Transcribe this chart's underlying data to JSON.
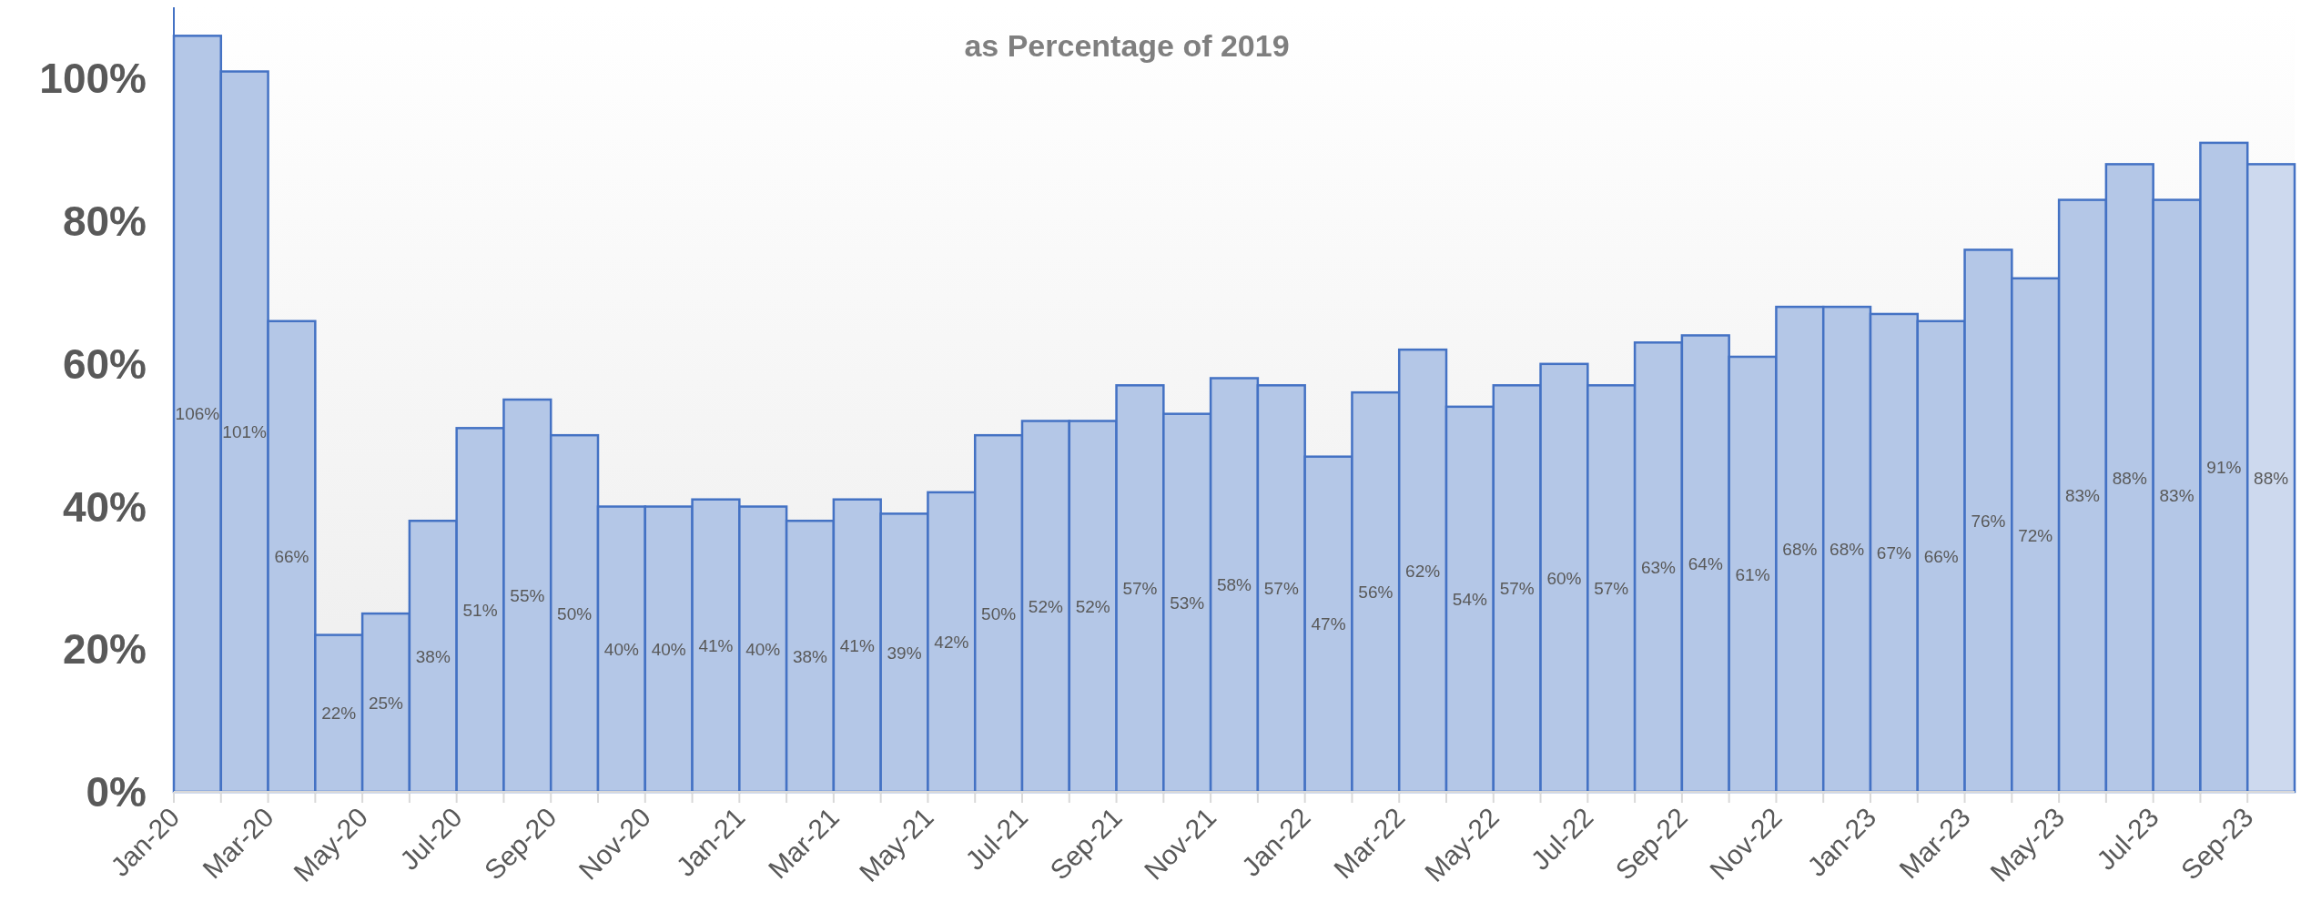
{
  "chart_data": {
    "type": "bar",
    "subtitle": "as Percentage of 2019",
    "categories": [
      "Jan-20",
      null,
      "Mar-20",
      null,
      "May-20",
      null,
      "Jul-20",
      null,
      "Sep-20",
      null,
      "Nov-20",
      null,
      "Jan-21",
      null,
      "Mar-21",
      null,
      "May-21",
      null,
      "Jul-21",
      null,
      "Sep-21",
      null,
      "Nov-21",
      null,
      "Jan-22",
      null,
      "Mar-22",
      null,
      "May-22",
      null,
      "Jul-22",
      null,
      "Sep-22",
      null,
      "Nov-22",
      null,
      "Jan-23",
      null,
      "Mar-23",
      null,
      "May-23",
      null,
      "Jul-23",
      null,
      "Sep-23"
    ],
    "values": [
      106,
      101,
      66,
      22,
      25,
      38,
      51,
      55,
      50,
      40,
      40,
      41,
      40,
      38,
      41,
      39,
      42,
      50,
      52,
      52,
      57,
      53,
      58,
      57,
      47,
      56,
      62,
      54,
      57,
      60,
      57,
      63,
      64,
      61,
      68,
      68,
      67,
      66,
      76,
      72,
      83,
      88,
      83,
      91,
      88
    ],
    "colors": [
      "#b4c7e7",
      "#b4c7e7",
      "#b4c7e7",
      "#b4c7e7",
      "#b4c7e7",
      "#b4c7e7",
      "#b4c7e7",
      "#b4c7e7",
      "#b4c7e7",
      "#b4c7e7",
      "#b4c7e7",
      "#b4c7e7",
      "#b4c7e7",
      "#b4c7e7",
      "#b4c7e7",
      "#b4c7e7",
      "#b4c7e7",
      "#b4c7e7",
      "#b4c7e7",
      "#b4c7e7",
      "#b4c7e7",
      "#b4c7e7",
      "#b4c7e7",
      "#b4c7e7",
      "#b4c7e7",
      "#b4c7e7",
      "#b4c7e7",
      "#b4c7e7",
      "#b4c7e7",
      "#b4c7e7",
      "#b4c7e7",
      "#b4c7e7",
      "#b4c7e7",
      "#b4c7e7",
      "#b4c7e7",
      "#b4c7e7",
      "#b4c7e7",
      "#b4c7e7",
      "#b4c7e7",
      "#b4c7e7",
      "#b4c7e7",
      "#b4c7e7",
      "#b4c7e7",
      "#b4c7e7",
      "#cdd9ee"
    ],
    "value_labels": [
      "106%",
      "101%",
      "66%",
      "22%",
      "25%",
      "38%",
      "51%",
      "55%",
      "50%",
      "40%",
      "40%",
      "41%",
      "40%",
      "38%",
      "41%",
      "39%",
      "42%",
      "50%",
      "52%",
      "52%",
      "57%",
      "53%",
      "58%",
      "57%",
      "47%",
      "56%",
      "62%",
      "54%",
      "57%",
      "60%",
      "57%",
      "63%",
      "64%",
      "61%",
      "68%",
      "68%",
      "67%",
      "66%",
      "76%",
      "72%",
      "83%",
      "88%",
      "83%",
      "91%",
      "88%"
    ],
    "ylim": [
      0,
      110
    ],
    "yticks": [
      {
        "value": 0,
        "label": "0%"
      },
      {
        "value": 20,
        "label": "20%"
      },
      {
        "value": 40,
        "label": "40%"
      },
      {
        "value": 60,
        "label": "60%"
      },
      {
        "value": 80,
        "label": "80%"
      },
      {
        "value": 100,
        "label": "100%"
      }
    ],
    "grid": false
  }
}
